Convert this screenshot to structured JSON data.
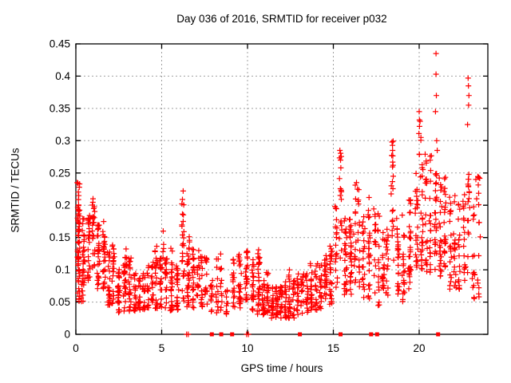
{
  "chart_data": {
    "type": "scatter",
    "title": "Day 036 of 2016, SRMTID for receiver p032",
    "xlabel": "GPS time / hours",
    "ylabel": "SRMTID / TECUs",
    "xlim": [
      0,
      24
    ],
    "ylim": [
      0,
      0.45
    ],
    "xticks": [
      "0",
      "5",
      "10",
      "15",
      "20"
    ],
    "yticks": [
      "0",
      "0.05",
      "0.1",
      "0.15",
      "0.2",
      "0.25",
      "0.3",
      "0.35",
      "0.4",
      "0.45"
    ],
    "grid": "dashed-gray-at-every-tick",
    "legend": "none",
    "marker": {
      "shape": "plus",
      "color": "#ff0000",
      "size": 7,
      "stroke_width": 1.2
    },
    "colors": {
      "marker": "#ff0000",
      "grid": "#a0a0a0",
      "axis": "#000000",
      "background": "#ffffff"
    },
    "prng_seed": 2016036,
    "notable_points": [
      [
        0.08,
        0.235
      ],
      [
        1.0,
        0.21
      ],
      [
        6.25,
        0.222
      ],
      [
        15.38,
        0.285
      ],
      [
        15.42,
        0.27
      ],
      [
        16.35,
        0.235
      ],
      [
        16.4,
        0.225
      ],
      [
        17.08,
        0.212
      ],
      [
        18.4,
        0.277
      ],
      [
        18.42,
        0.298
      ],
      [
        18.45,
        0.285
      ],
      [
        18.48,
        0.262
      ],
      [
        19.4,
        0.208
      ],
      [
        20.0,
        0.345
      ],
      [
        20.05,
        0.33
      ],
      [
        20.1,
        0.305
      ],
      [
        20.95,
        0.345
      ],
      [
        20.98,
        0.435
      ],
      [
        20.98,
        0.403
      ],
      [
        21.0,
        0.37
      ],
      [
        21.02,
        0.3
      ],
      [
        21.05,
        0.285
      ],
      [
        22.82,
        0.325
      ],
      [
        22.85,
        0.397
      ],
      [
        22.87,
        0.385
      ],
      [
        22.88,
        0.355
      ],
      [
        22.9,
        0.37
      ],
      [
        23.3,
        0.24
      ],
      [
        23.35,
        0.21
      ]
    ],
    "zero_value_points": [
      6.45,
      6.55,
      9.95,
      10.05
    ],
    "zero_value_clusters": [
      7.92,
      8.47,
      9.1,
      13.05,
      15.42,
      17.2,
      17.55,
      21.1
    ],
    "segment_format": "[x_start_hours, x_end_hours, n_points, y_min_TECU, y_max_TECU, skew]",
    "density_segments": [
      [
        0.02,
        0.3,
        55,
        0.09,
        0.235,
        1.0
      ],
      [
        0.05,
        0.5,
        20,
        0.05,
        0.09,
        1.0
      ],
      [
        0.3,
        0.9,
        55,
        0.08,
        0.185,
        1.1
      ],
      [
        0.9,
        1.15,
        25,
        0.1,
        0.21,
        1.0
      ],
      [
        1.15,
        1.8,
        60,
        0.07,
        0.175,
        1.2
      ],
      [
        1.8,
        2.3,
        45,
        0.045,
        0.14,
        1.2
      ],
      [
        2.3,
        2.7,
        30,
        0.03,
        0.105,
        1.2
      ],
      [
        2.7,
        3.3,
        45,
        0.035,
        0.12,
        1.3
      ],
      [
        2.85,
        3.0,
        6,
        0.1,
        0.135,
        1.0
      ],
      [
        3.3,
        4.1,
        55,
        0.035,
        0.095,
        1.2
      ],
      [
        4.1,
        4.8,
        45,
        0.04,
        0.115,
        1.2
      ],
      [
        4.55,
        4.75,
        5,
        0.1,
        0.138,
        1.0
      ],
      [
        4.8,
        5.4,
        40,
        0.04,
        0.12,
        1.2
      ],
      [
        5.0,
        5.2,
        5,
        0.11,
        0.17,
        1.0
      ],
      [
        5.4,
        6.1,
        50,
        0.035,
        0.115,
        1.2
      ],
      [
        5.5,
        5.62,
        3,
        0.1,
        0.155,
        1.0
      ],
      [
        6.15,
        6.35,
        14,
        0.13,
        0.222,
        1.0
      ],
      [
        6.1,
        6.4,
        12,
        0.05,
        0.13,
        1.0
      ],
      [
        6.4,
        7.0,
        50,
        0.04,
        0.135,
        1.2
      ],
      [
        6.55,
        6.7,
        5,
        0.12,
        0.165,
        1.0
      ],
      [
        7.0,
        7.7,
        45,
        0.04,
        0.13,
        1.2
      ],
      [
        7.7,
        8.1,
        12,
        0.03,
        0.09,
        1.0
      ],
      [
        8.1,
        8.6,
        25,
        0.03,
        0.125,
        1.1
      ],
      [
        8.6,
        9.0,
        12,
        0.03,
        0.07,
        1.0
      ],
      [
        9.0,
        9.35,
        20,
        0.04,
        0.12,
        1.1
      ],
      [
        9.35,
        9.75,
        25,
        0.04,
        0.125,
        1.1
      ],
      [
        9.75,
        10.15,
        30,
        0.05,
        0.135,
        1.1
      ],
      [
        10.15,
        10.8,
        50,
        0.03,
        0.12,
        1.2
      ],
      [
        10.55,
        10.7,
        4,
        0.11,
        0.138,
        1.0
      ],
      [
        10.8,
        11.3,
        40,
        0.03,
        0.1,
        1.3
      ],
      [
        11.3,
        12.1,
        60,
        0.025,
        0.075,
        1.1
      ],
      [
        12.1,
        12.8,
        50,
        0.025,
        0.085,
        1.1
      ],
      [
        12.35,
        12.5,
        4,
        0.08,
        0.1,
        1.0
      ],
      [
        12.8,
        13.6,
        50,
        0.03,
        0.095,
        1.1
      ],
      [
        13.6,
        14.4,
        55,
        0.035,
        0.11,
        1.2
      ],
      [
        14.4,
        15.0,
        45,
        0.045,
        0.125,
        1.1
      ],
      [
        14.75,
        14.95,
        5,
        0.11,
        0.145,
        1.0
      ],
      [
        15.05,
        15.3,
        20,
        0.07,
        0.2,
        1.0
      ],
      [
        15.3,
        15.55,
        18,
        0.1,
        0.285,
        1.1
      ],
      [
        15.55,
        16.15,
        55,
        0.06,
        0.18,
        1.1
      ],
      [
        16.15,
        16.6,
        30,
        0.07,
        0.235,
        1.1
      ],
      [
        16.6,
        17.25,
        40,
        0.05,
        0.185,
        1.1
      ],
      [
        17.0,
        17.15,
        4,
        0.17,
        0.215,
        1.0
      ],
      [
        17.3,
        17.75,
        30,
        0.04,
        0.195,
        1.1
      ],
      [
        17.8,
        18.25,
        35,
        0.06,
        0.165,
        1.1
      ],
      [
        18.3,
        18.6,
        18,
        0.1,
        0.3,
        1.1
      ],
      [
        18.6,
        19.25,
        45,
        0.05,
        0.185,
        1.1
      ],
      [
        19.25,
        19.65,
        30,
        0.07,
        0.21,
        1.1
      ],
      [
        19.7,
        20.3,
        50,
        0.1,
        0.27,
        1.1
      ],
      [
        19.95,
        20.15,
        6,
        0.27,
        0.345,
        1.0
      ],
      [
        20.3,
        20.75,
        40,
        0.09,
        0.28,
        1.2
      ],
      [
        20.8,
        21.1,
        25,
        0.1,
        0.26,
        1.0
      ],
      [
        21.1,
        21.65,
        45,
        0.09,
        0.25,
        1.2
      ],
      [
        21.7,
        22.45,
        55,
        0.07,
        0.215,
        1.2
      ],
      [
        22.5,
        23.0,
        35,
        0.08,
        0.25,
        1.1
      ],
      [
        23.0,
        23.65,
        30,
        0.05,
        0.245,
        1.3
      ]
    ]
  }
}
